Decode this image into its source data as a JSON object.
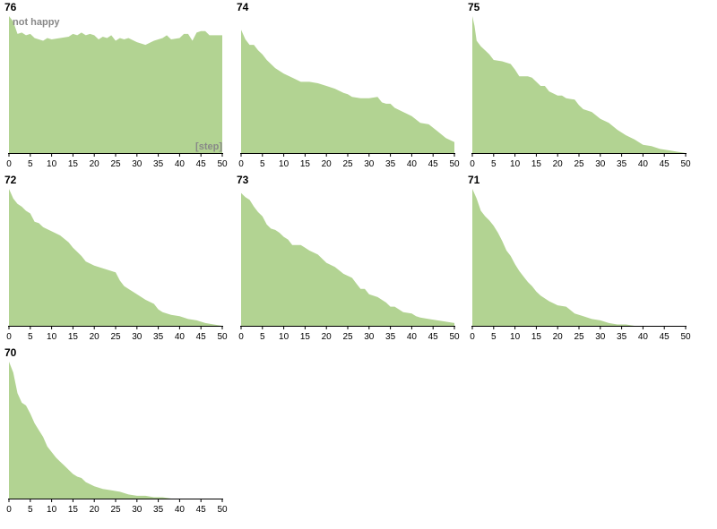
{
  "chart_data": {
    "type": "area",
    "fill_color": "#b2d392",
    "y_label": "not happy",
    "x_label": "[step]",
    "x_ticks": [
      0,
      5,
      10,
      15,
      20,
      25,
      30,
      35,
      40,
      45,
      50
    ],
    "xlim": [
      0,
      50
    ],
    "ylim": [
      0,
      1
    ],
    "panels": [
      {
        "title": "76",
        "x": [
          0,
          1,
          2,
          3,
          4,
          5,
          6,
          7,
          8,
          9,
          10,
          12,
          14,
          15,
          16,
          17,
          18,
          19,
          20,
          21,
          22,
          23,
          24,
          25,
          26,
          27,
          28,
          30,
          32,
          34,
          36,
          37,
          38,
          40,
          41,
          42,
          43,
          44,
          45,
          46,
          47,
          48,
          50
        ],
        "y": [
          1.0,
          0.96,
          0.87,
          0.88,
          0.86,
          0.87,
          0.84,
          0.83,
          0.82,
          0.84,
          0.83,
          0.84,
          0.85,
          0.87,
          0.86,
          0.88,
          0.86,
          0.87,
          0.86,
          0.83,
          0.85,
          0.84,
          0.86,
          0.82,
          0.84,
          0.83,
          0.84,
          0.81,
          0.79,
          0.82,
          0.84,
          0.86,
          0.83,
          0.84,
          0.87,
          0.87,
          0.82,
          0.88,
          0.89,
          0.89,
          0.86,
          0.86,
          0.86
        ]
      },
      {
        "title": "74",
        "x": [
          0,
          1,
          2,
          3,
          4,
          5,
          6,
          7,
          8,
          10,
          12,
          14,
          16,
          18,
          20,
          22,
          24,
          25,
          26,
          28,
          30,
          32,
          33,
          34,
          35,
          36,
          38,
          40,
          42,
          44,
          46,
          48,
          50
        ],
        "y": [
          0.9,
          0.83,
          0.79,
          0.79,
          0.75,
          0.72,
          0.68,
          0.65,
          0.62,
          0.58,
          0.55,
          0.52,
          0.52,
          0.51,
          0.49,
          0.47,
          0.44,
          0.43,
          0.41,
          0.4,
          0.4,
          0.41,
          0.37,
          0.36,
          0.36,
          0.33,
          0.3,
          0.27,
          0.22,
          0.21,
          0.16,
          0.11,
          0.08
        ]
      },
      {
        "title": "75",
        "x": [
          0,
          0.5,
          1,
          2,
          3,
          4,
          5,
          7,
          9,
          10,
          11,
          13,
          14,
          15,
          16,
          17,
          18,
          20,
          21,
          22,
          24,
          25,
          26,
          28,
          30,
          32,
          34,
          36,
          38,
          40,
          42,
          44,
          46,
          48,
          50
        ],
        "y": [
          1.0,
          0.93,
          0.82,
          0.78,
          0.75,
          0.72,
          0.68,
          0.67,
          0.65,
          0.61,
          0.56,
          0.56,
          0.55,
          0.52,
          0.49,
          0.49,
          0.45,
          0.42,
          0.42,
          0.4,
          0.39,
          0.35,
          0.32,
          0.3,
          0.25,
          0.22,
          0.17,
          0.13,
          0.1,
          0.06,
          0.05,
          0.03,
          0.02,
          0.01,
          0.0
        ]
      },
      {
        "title": "72",
        "x": [
          0,
          1,
          2,
          3,
          4,
          5,
          6,
          7,
          8,
          10,
          12,
          14,
          15,
          16,
          17,
          18,
          20,
          22,
          24,
          25,
          26,
          27,
          28,
          30,
          32,
          34,
          35,
          36,
          38,
          40,
          42,
          44,
          46,
          48,
          50
        ],
        "y": [
          1.0,
          0.93,
          0.89,
          0.87,
          0.84,
          0.82,
          0.76,
          0.75,
          0.72,
          0.69,
          0.66,
          0.61,
          0.57,
          0.54,
          0.51,
          0.47,
          0.44,
          0.42,
          0.4,
          0.39,
          0.33,
          0.29,
          0.27,
          0.23,
          0.19,
          0.16,
          0.12,
          0.1,
          0.08,
          0.07,
          0.05,
          0.04,
          0.02,
          0.01,
          0.0
        ]
      },
      {
        "title": "73",
        "x": [
          0,
          1,
          2,
          3,
          4,
          5,
          6,
          7,
          8,
          9,
          10,
          11,
          12,
          14,
          15,
          16,
          18,
          20,
          22,
          24,
          26,
          27,
          28,
          29,
          30,
          32,
          34,
          35,
          36,
          38,
          40,
          41,
          42,
          44,
          46,
          48,
          50
        ],
        "y": [
          0.97,
          0.94,
          0.92,
          0.87,
          0.83,
          0.8,
          0.74,
          0.71,
          0.7,
          0.68,
          0.65,
          0.63,
          0.59,
          0.59,
          0.57,
          0.55,
          0.52,
          0.46,
          0.43,
          0.38,
          0.35,
          0.31,
          0.27,
          0.27,
          0.23,
          0.21,
          0.17,
          0.14,
          0.14,
          0.1,
          0.09,
          0.07,
          0.06,
          0.05,
          0.04,
          0.03,
          0.02
        ]
      },
      {
        "title": "71",
        "x": [
          0,
          1,
          2,
          3,
          4,
          5,
          6,
          7,
          8,
          9,
          10,
          11,
          12,
          13,
          14,
          15,
          16,
          17,
          18,
          20,
          22,
          24,
          26,
          28,
          30,
          32,
          34,
          36,
          38,
          40,
          45,
          50
        ],
        "y": [
          1.0,
          0.93,
          0.84,
          0.8,
          0.77,
          0.73,
          0.68,
          0.62,
          0.55,
          0.51,
          0.45,
          0.4,
          0.36,
          0.32,
          0.29,
          0.25,
          0.22,
          0.2,
          0.18,
          0.15,
          0.14,
          0.09,
          0.07,
          0.05,
          0.04,
          0.02,
          0.01,
          0.01,
          0.0,
          0.0,
          0.0,
          0.0
        ]
      },
      {
        "title": "70",
        "x": [
          0,
          1,
          2,
          3,
          4,
          5,
          6,
          7,
          8,
          9,
          10,
          11,
          12,
          13,
          14,
          15,
          16,
          17,
          18,
          20,
          22,
          24,
          26,
          28,
          30,
          32,
          34,
          36,
          38,
          40,
          45,
          50
        ],
        "y": [
          1.0,
          0.92,
          0.77,
          0.7,
          0.68,
          0.62,
          0.55,
          0.5,
          0.45,
          0.38,
          0.34,
          0.3,
          0.27,
          0.24,
          0.21,
          0.18,
          0.16,
          0.15,
          0.12,
          0.09,
          0.07,
          0.06,
          0.05,
          0.03,
          0.02,
          0.02,
          0.01,
          0.01,
          0.0,
          0.0,
          0.0,
          0.0
        ]
      }
    ]
  }
}
